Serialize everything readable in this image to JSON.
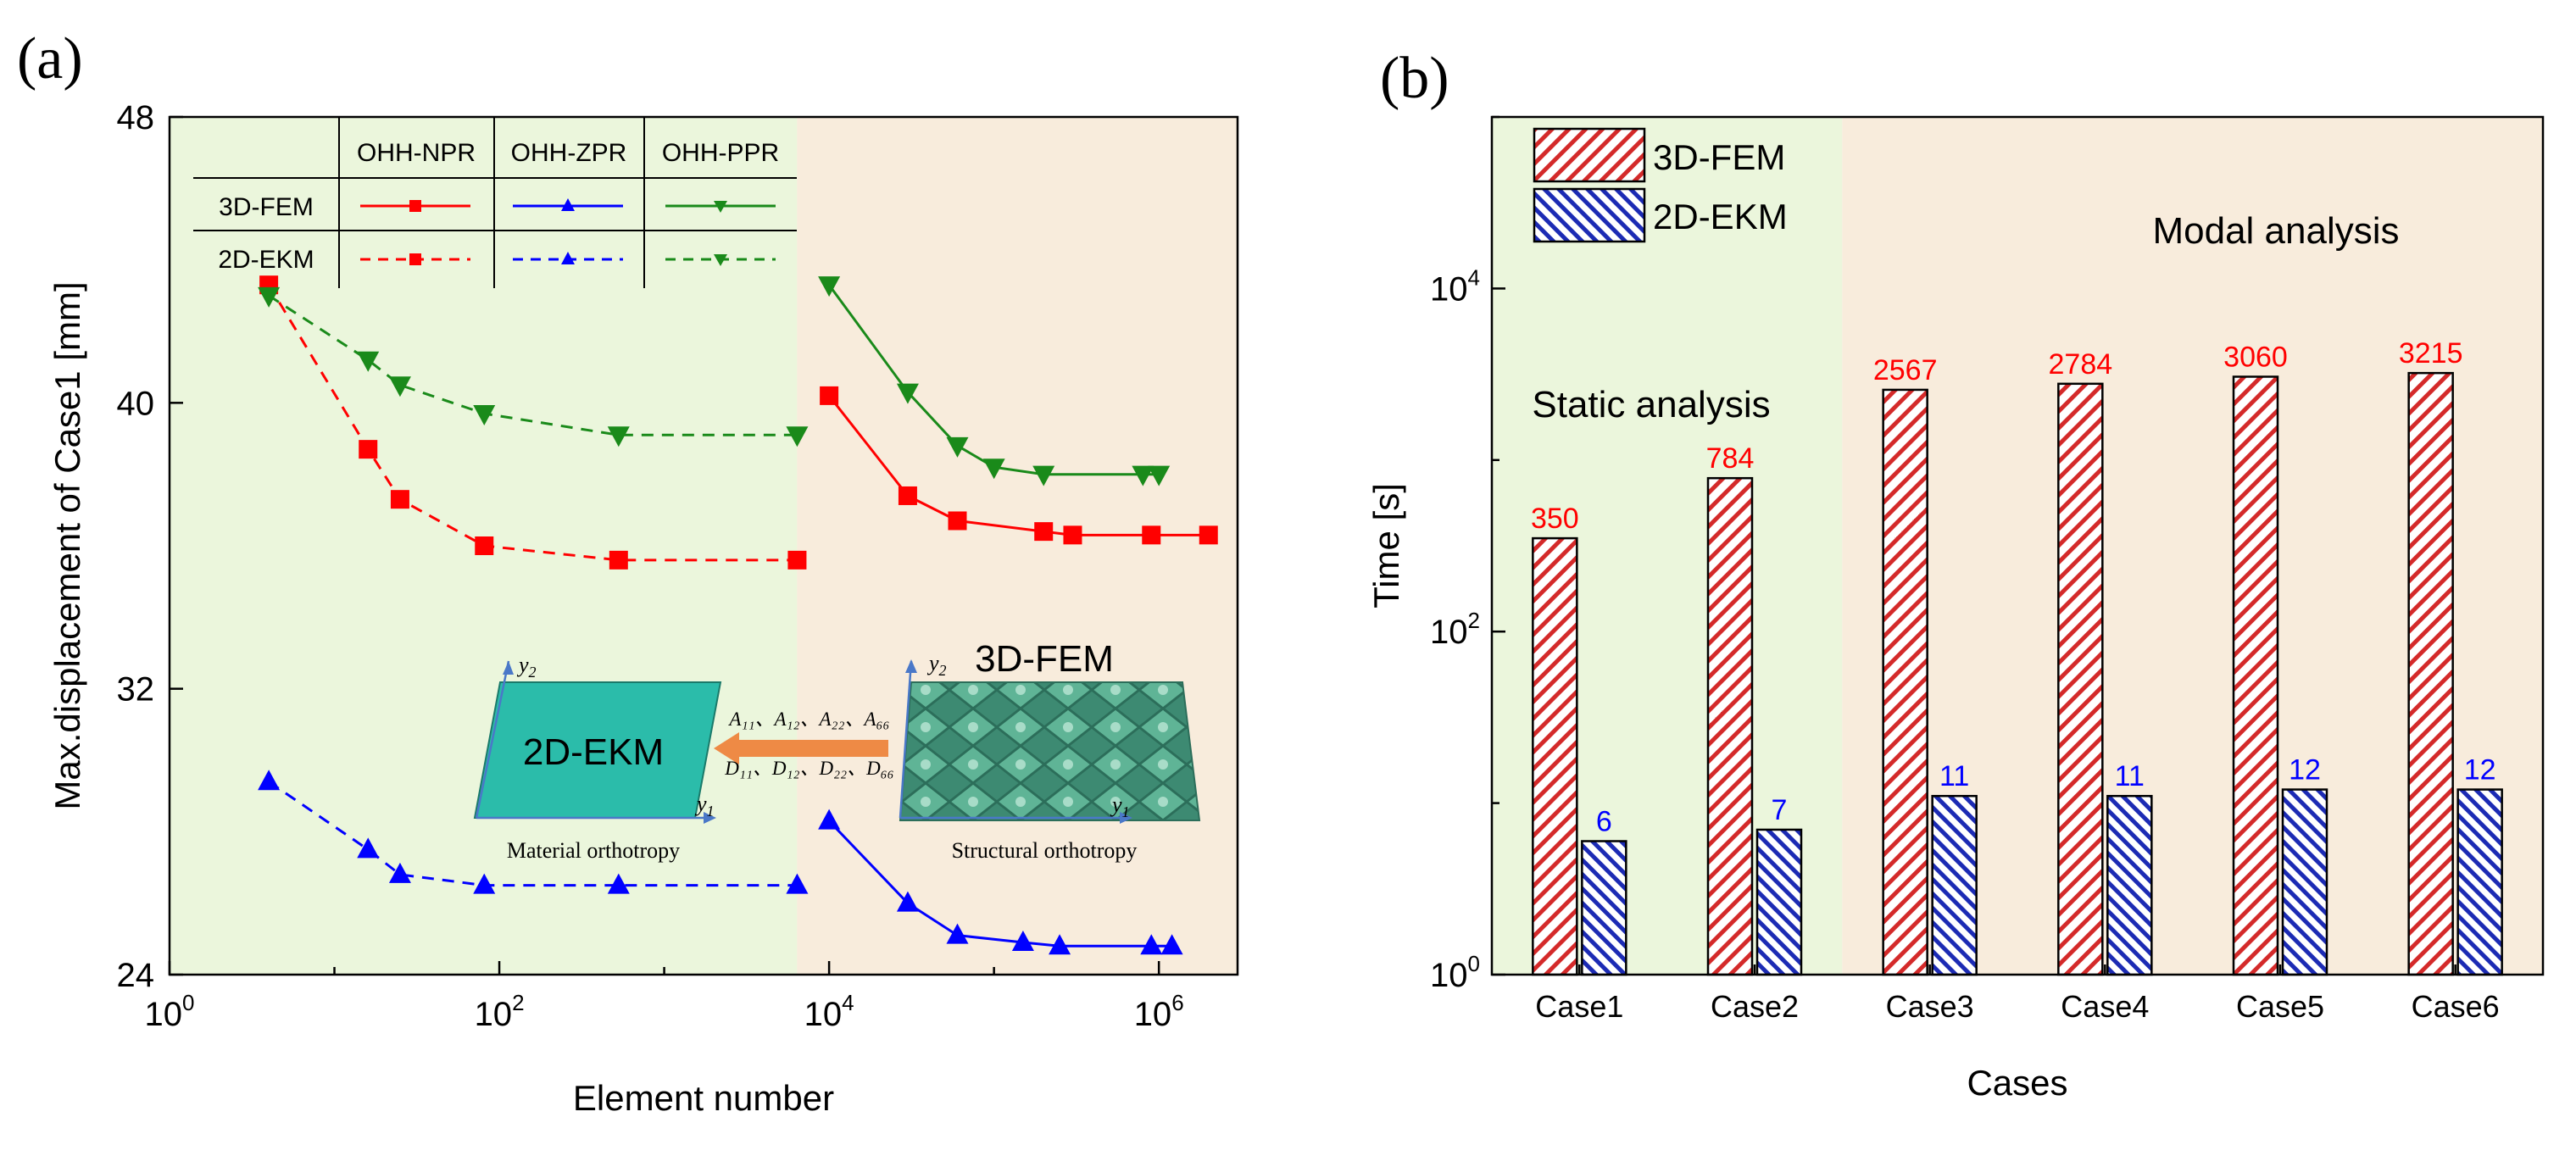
{
  "colors": {
    "red": "#ff0000",
    "blue": "#0000ff",
    "green": "#1a8a1a",
    "bg_green": "#ebf6dc",
    "bg_tan": "#f8ecdc",
    "teal": "#2bbcaa",
    "arrow": "#ee8a45",
    "bar_red": "#d42a2a",
    "bar_blue": "#1c2bb4"
  },
  "panel_a": {
    "label": "(a)",
    "legend": {
      "col_headers": [
        "OHH-NPR",
        "OHH-ZPR",
        "OHH-PPR"
      ],
      "row_headers": [
        "3D-FEM",
        "2D-EKM"
      ]
    },
    "inset": {
      "left_box_label": "2D-EKM",
      "right_box_label": "3D-FEM",
      "y2": "y",
      "y2_sub": "2",
      "y1": "y",
      "y1_sub": "1",
      "left_caption": "Material orthotropy",
      "right_caption": "Structural orthotropy",
      "coeff_top": "A₁₁、A₁₂、A₂₂、A₆₆",
      "coeff_bottom": "D₁₁、D₁₂、D₂₂、D₆₆"
    }
  },
  "panel_b": {
    "label": "(b)",
    "legend": [
      "3D-FEM",
      "2D-EKM"
    ],
    "static_label": "Static analysis",
    "modal_label": "Modal analysis"
  },
  "chart_data": [
    {
      "type": "line",
      "title": "",
      "xlabel": "Element number",
      "ylabel": "Max.displacement of Case1 [mm]",
      "xscale": "log",
      "xlim": [
        1,
        3000000
      ],
      "ylim": [
        24,
        48
      ],
      "yticks": [
        24,
        32,
        40,
        48
      ],
      "xticks": [
        {
          "value": 1,
          "base": "10",
          "exp": "0"
        },
        {
          "value": 100,
          "base": "10",
          "exp": "2"
        },
        {
          "value": 10000,
          "base": "10",
          "exp": "4"
        },
        {
          "value": 1000000,
          "base": "10",
          "exp": "6"
        }
      ],
      "regions": [
        {
          "from": 1,
          "to": 6400,
          "color": "bg_green"
        },
        {
          "from": 6400,
          "to": 3000000,
          "color": "bg_tan"
        }
      ],
      "series": [
        {
          "name": "OHH-NPR 3D-FEM",
          "color": "red",
          "marker": "square",
          "dashed": false,
          "x": [
            10000,
            30000,
            60000,
            200000,
            300000,
            900000,
            2000000
          ],
          "y": [
            40.2,
            37.4,
            36.7,
            36.4,
            36.3,
            36.3,
            36.3
          ]
        },
        {
          "name": "OHH-NPR 2D-EKM",
          "color": "red",
          "marker": "square",
          "dashed": true,
          "x": [
            4,
            16,
            25,
            81,
            529,
            6400
          ],
          "y": [
            43.3,
            38.7,
            37.3,
            36.0,
            35.6,
            35.6
          ]
        },
        {
          "name": "OHH-ZPR 3D-FEM",
          "color": "blue",
          "marker": "triangle-up",
          "dashed": false,
          "x": [
            10000,
            30000,
            60000,
            150000,
            250000,
            900000,
            1200000
          ],
          "y": [
            28.3,
            26.0,
            25.1,
            24.9,
            24.8,
            24.8,
            24.8
          ]
        },
        {
          "name": "OHH-ZPR 2D-EKM",
          "color": "blue",
          "marker": "triangle-up",
          "dashed": true,
          "x": [
            4,
            16,
            25,
            81,
            529,
            6400
          ],
          "y": [
            29.4,
            27.5,
            26.8,
            26.5,
            26.5,
            26.5
          ]
        },
        {
          "name": "OHH-PPR 3D-FEM",
          "color": "green",
          "marker": "triangle-down",
          "dashed": false,
          "x": [
            10000,
            30000,
            60000,
            100000,
            200000,
            800000,
            1000000
          ],
          "y": [
            43.3,
            40.3,
            38.8,
            38.2,
            38.0,
            38.0,
            38.0
          ]
        },
        {
          "name": "OHH-PPR 2D-EKM",
          "color": "green",
          "marker": "triangle-down",
          "dashed": true,
          "x": [
            4,
            16,
            25,
            81,
            529,
            6400
          ],
          "y": [
            43.0,
            41.2,
            40.5,
            39.7,
            39.1,
            39.1
          ]
        }
      ]
    },
    {
      "type": "bar",
      "title": "",
      "xlabel": "Cases",
      "ylabel": "Time [s]",
      "yscale": "log",
      "ylim": [
        1,
        100000
      ],
      "yticks": [
        {
          "value": 1,
          "base": "10",
          "exp": "0"
        },
        {
          "value": 100,
          "base": "10",
          "exp": "2"
        },
        {
          "value": 10000,
          "base": "10",
          "exp": "4"
        }
      ],
      "categories": [
        "Case1",
        "Case2",
        "Case3",
        "Case4",
        "Case5",
        "Case6"
      ],
      "series": [
        {
          "name": "3D-FEM",
          "color": "bar_red",
          "values": [
            350,
            784,
            2567,
            2784,
            3060,
            3215
          ],
          "labels": [
            "350",
            "784",
            "2567",
            "2784",
            "3060",
            "3215"
          ]
        },
        {
          "name": "2D-EKM",
          "color": "bar_blue",
          "values": [
            6,
            7,
            11,
            11,
            12,
            12
          ],
          "labels": [
            "6",
            "7",
            "11",
            "11",
            "12",
            "12"
          ]
        }
      ]
    }
  ]
}
